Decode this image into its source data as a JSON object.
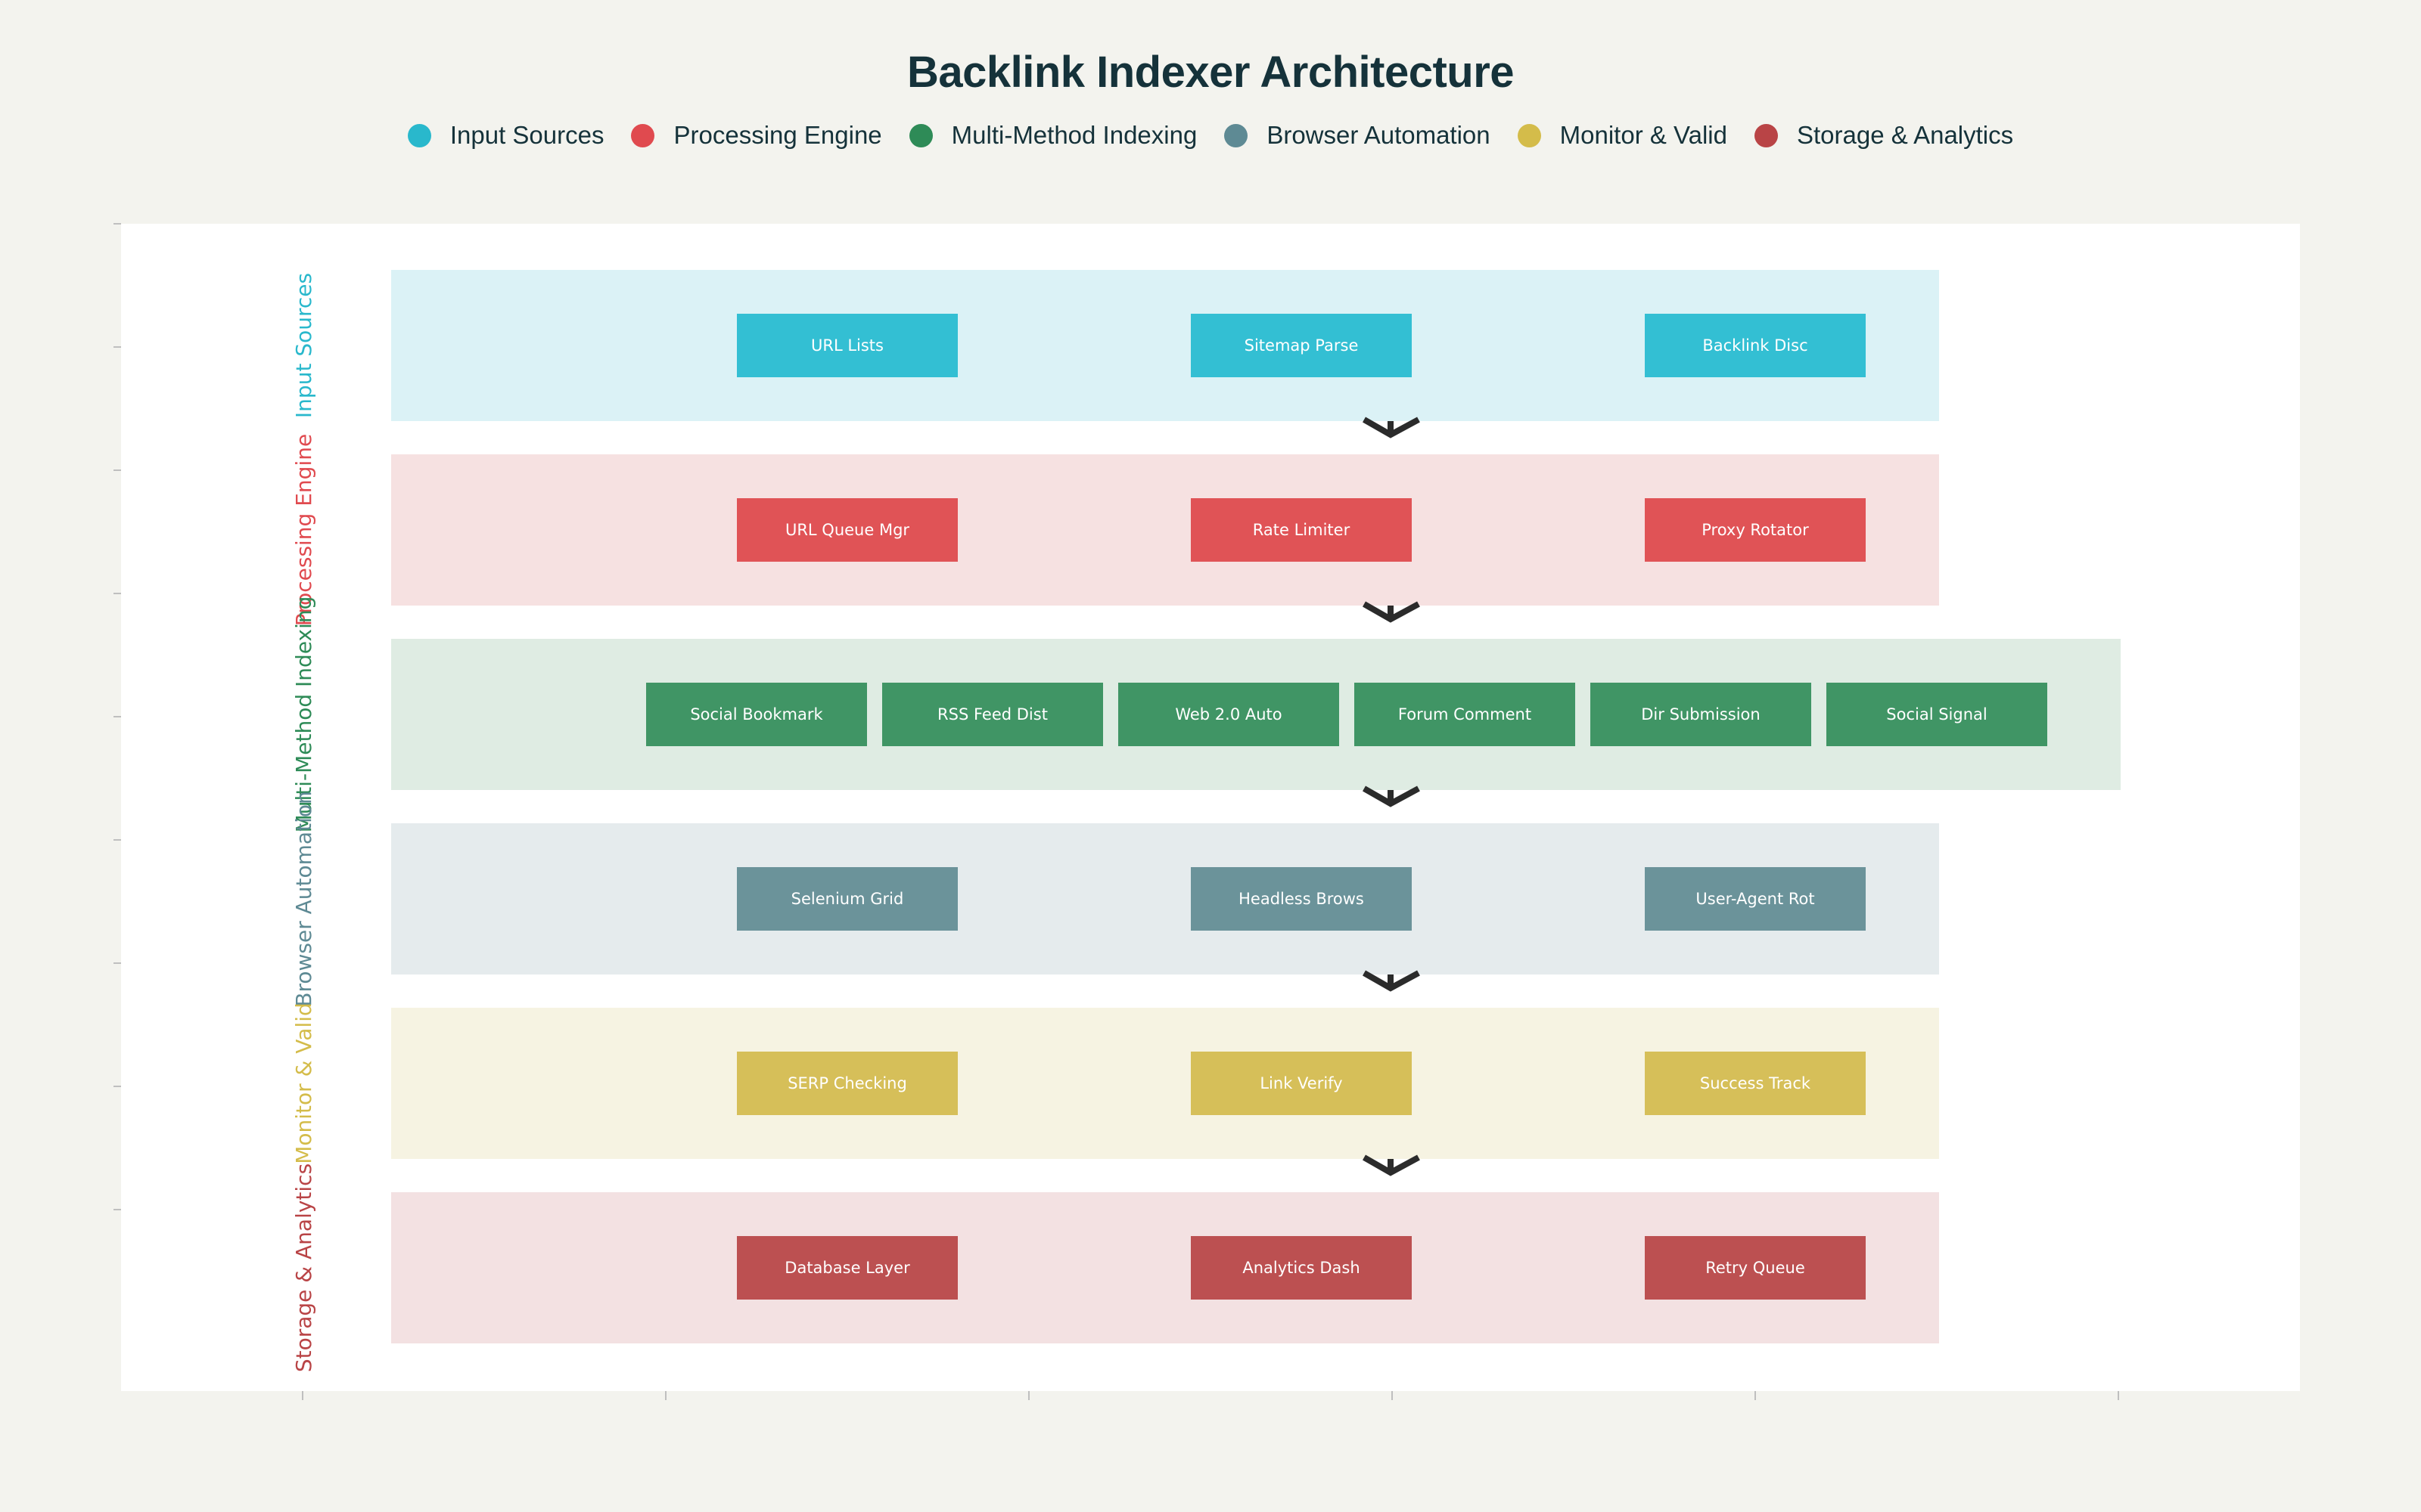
{
  "title": "Backlink Indexer Architecture",
  "legend": [
    {
      "label": "Input Sources",
      "color": "#29b8cc"
    },
    {
      "label": "Processing Engine",
      "color": "#e04a4f"
    },
    {
      "label": "Multi-Method Indexing",
      "color": "#2e8b57"
    },
    {
      "label": "Browser Automation",
      "color": "#5e8a94"
    },
    {
      "label": "Monitor & Valid",
      "color": "#d4bc4a"
    },
    {
      "label": "Storage & Analytics",
      "color": "#b94446"
    }
  ],
  "layers": [
    {
      "name": "Input Sources",
      "color": "#29b8cc",
      "band_color": "#dbf2f6",
      "box_color": "#33bfd3",
      "components": [
        "URL Lists",
        "Sitemap Parse",
        "Backlink Disc"
      ]
    },
    {
      "name": "Processing Engine",
      "color": "#e04a4f",
      "band_color": "#f6e1e1",
      "box_color": "#e05356",
      "components": [
        "URL Queue Mgr",
        "Rate Limiter",
        "Proxy Rotator"
      ]
    },
    {
      "name": "Multi-Method Indexing",
      "color": "#2e8b57",
      "band_color": "#dfece3",
      "box_color": "#409565",
      "components": [
        "Social Bookmark",
        "RSS Feed Dist",
        "Web 2.0 Auto",
        "Forum Comment",
        "Dir Submission",
        "Social Signal"
      ]
    },
    {
      "name": "Browser Automation",
      "color": "#5e8a94",
      "band_color": "#e5ebed",
      "box_color": "#6b939a",
      "components": [
        "Selenium Grid",
        "Headless Brows",
        "User-Agent Rot"
      ]
    },
    {
      "name": "Monitor & Valid",
      "color": "#d4bc4a",
      "band_color": "#f6f3e2",
      "box_color": "#d6bf59",
      "components": [
        "SERP Checking",
        "Link Verify",
        "Success Track"
      ]
    },
    {
      "name": "Storage & Analytics",
      "color": "#b94446",
      "band_color": "#f3e1e2",
      "box_color": "#bc5051",
      "components": [
        "Database Layer",
        "Analytics Dash",
        "Retry Queue"
      ]
    }
  ],
  "arrow_color": "#2b2b2b"
}
